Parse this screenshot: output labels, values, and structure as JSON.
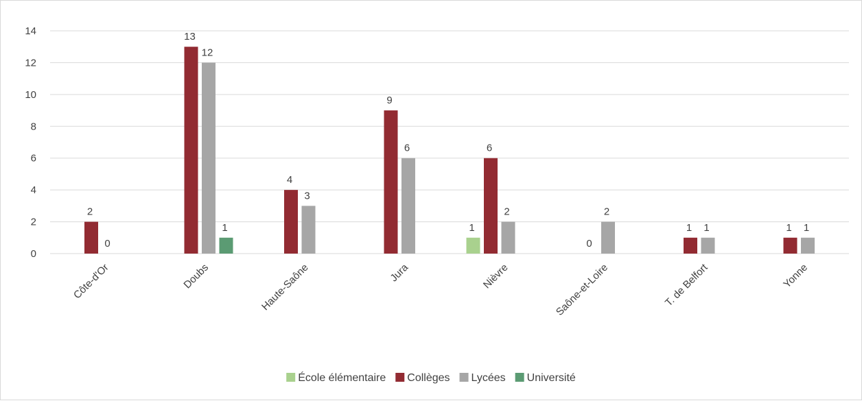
{
  "chart_data": {
    "type": "bar",
    "categories": [
      "Côte-d'Or",
      "Doubs",
      "Haute-Saône",
      "Jura",
      "Nièvre",
      "Saône-et-Loire",
      "T. de Belfort",
      "Yonne"
    ],
    "series": [
      {
        "name": "École élémentaire",
        "color": "#a9d18e",
        "values": [
          null,
          null,
          null,
          null,
          1,
          null,
          null,
          null
        ]
      },
      {
        "name": "Collèges",
        "color": "#922b32",
        "values": [
          2,
          13,
          4,
          9,
          6,
          0,
          1,
          1
        ]
      },
      {
        "name": "Lycées",
        "color": "#a6a6a6",
        "values": [
          0,
          12,
          3,
          6,
          2,
          2,
          1,
          1
        ]
      },
      {
        "name": "Université",
        "color": "#5b9b73",
        "values": [
          null,
          1,
          null,
          null,
          null,
          null,
          null,
          null
        ]
      }
    ],
    "ylim": [
      0,
      14
    ],
    "yticks": [
      0,
      2,
      4,
      6,
      8,
      10,
      12,
      14
    ],
    "grid": true,
    "legend_position": "bottom"
  }
}
